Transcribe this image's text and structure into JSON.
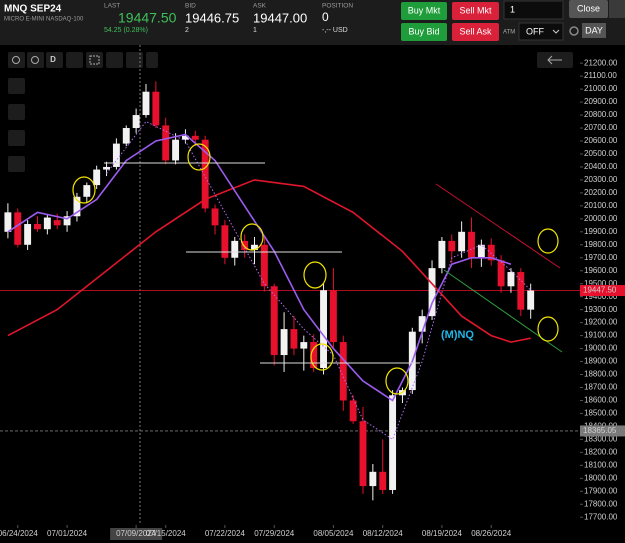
{
  "toolbar": {
    "symbol": "MNQ SEP24",
    "description": "MICRO E-MINI NASDAQ-100",
    "last_label": "LAST",
    "last": "19447.50",
    "change": "54.25 (0.28%)",
    "bid_label": "BID",
    "bid": "19446.75",
    "bid_size": "2",
    "ask_label": "ASK",
    "ask": "19447.00",
    "ask_size": "1",
    "position_label": "POSITION",
    "position": "0",
    "position_value": "-,-- USD",
    "buttons": [
      "Buy Mkt",
      "Sell Mkt",
      "Buy Bid",
      "Sell Ask"
    ],
    "quantity": "1",
    "atm_label": "ATM",
    "atm_value": "OFF",
    "close": "Close",
    "tif": "DAY"
  },
  "chart_data": {
    "type": "candlestick",
    "annotation": "(M)NQ",
    "open": [
      19900,
      20050,
      19800,
      19960,
      19920,
      19990,
      19950,
      20020,
      20170,
      20260,
      20380,
      20400,
      20580,
      20700,
      20800,
      20980,
      20720,
      20450,
      20610,
      20640,
      20610,
      20080,
      19950,
      19700,
      19830,
      19760,
      19800,
      19480,
      18950,
      19150,
      19000,
      19050,
      18850,
      19450,
      19050,
      18600,
      18440,
      17940,
      18050,
      17910,
      18640,
      18680,
      19130,
      19250,
      19620,
      19830,
      19750,
      19900,
      19700,
      19800,
      19680,
      19480,
      19590,
      19300
    ],
    "high": [
      20120,
      20080,
      19990,
      20020,
      20030,
      20040,
      20060,
      20200,
      20280,
      20410,
      20440,
      20620,
      20720,
      20850,
      21040,
      21060,
      20780,
      20660,
      20690,
      20680,
      20640,
      20110,
      19990,
      19860,
      19880,
      19860,
      19860,
      19500,
      19280,
      19250,
      19100,
      19110,
      19500,
      19620,
      19100,
      18640,
      18550,
      18110,
      18300,
      18680,
      18700,
      19160,
      19300,
      19680,
      19860,
      19880,
      19980,
      20010,
      19840,
      19850,
      19720,
      19620,
      19620,
      19500
    ],
    "low": [
      19850,
      19780,
      19760,
      19900,
      19880,
      19920,
      19900,
      19980,
      20120,
      20230,
      20330,
      20380,
      20560,
      20660,
      20780,
      20700,
      20420,
      20420,
      20580,
      20560,
      20050,
      19880,
      19650,
      19640,
      19700,
      19650,
      19440,
      18870,
      18820,
      18950,
      18830,
      18820,
      18800,
      19000,
      18520,
      18420,
      17880,
      17830,
      17880,
      17880,
      18580,
      18650,
      19040,
      19220,
      19580,
      19660,
      19700,
      19620,
      19630,
      19640,
      19430,
      19430,
      19250,
      19230
    ],
    "close": [
      20050,
      19800,
      19960,
      19920,
      20010,
      19950,
      20020,
      20170,
      20260,
      20380,
      20400,
      20580,
      20700,
      20800,
      20980,
      20720,
      20450,
      20610,
      20640,
      20610,
      20080,
      19950,
      19700,
      19830,
      19760,
      19800,
      19480,
      18950,
      19150,
      19000,
      19050,
      18850,
      19450,
      19050,
      18600,
      18440,
      17940,
      18050,
      17910,
      18640,
      18680,
      19130,
      19250,
      19620,
      19830,
      19750,
      19900,
      19700,
      19800,
      19680,
      19480,
      19590,
      19300,
      19447.5
    ],
    "up_color": "#f2f2f2",
    "down_color": "#e8112d",
    "series": [
      {
        "color": "#e0162b",
        "x": [
          0,
          5,
          10,
          15,
          20,
          25,
          30,
          35,
          40,
          43,
          46,
          49,
          51,
          53
        ],
        "values": [
          19100,
          19300,
          19600,
          19900,
          20150,
          20300,
          20250,
          20050,
          19750,
          19500,
          19250,
          19100,
          19050,
          19080
        ]
      },
      {
        "color": "#9d5cf0",
        "x": [
          0,
          3,
          6,
          9,
          12,
          15,
          18,
          21,
          24,
          27,
          30,
          33,
          36,
          39,
          41,
          43,
          45,
          47,
          49,
          51
        ],
        "values": [
          19900,
          20050,
          20000,
          20150,
          20450,
          20600,
          20650,
          20450,
          20100,
          19750,
          19300,
          19000,
          18750,
          18600,
          18900,
          19350,
          19650,
          19700,
          19700,
          19650
        ]
      },
      {
        "color": "#b06cf5",
        "x": [
          10,
          14,
          18,
          22,
          26,
          30,
          33,
          36,
          39,
          42,
          45,
          48,
          51,
          53
        ],
        "values": [
          20350,
          20750,
          20600,
          20050,
          19500,
          19150,
          18950,
          18450,
          18300,
          18900,
          19700,
          19800,
          19600,
          19450
        ],
        "dashed": true
      }
    ],
    "price_lines": [
      {
        "value": 19447.5,
        "label": "19447.50",
        "color": "#e8112d"
      },
      {
        "value": 18365.05,
        "label": "18365.05",
        "color": "#7a7a7a"
      }
    ],
    "xlim": [
      -0.8,
      58
    ],
    "ylim": [
      17640,
      21340
    ],
    "xticks": [
      {
        "value": 1,
        "label": "06/24/2024"
      },
      {
        "value": 6,
        "label": "07/01/2024"
      },
      {
        "value": 13,
        "label": "07/09/2024"
      },
      {
        "value": 16,
        "label": "07/15/2024"
      },
      {
        "value": 22,
        "label": "07/22/2024"
      },
      {
        "value": 27,
        "label": "07/29/2024"
      },
      {
        "value": 33,
        "label": "08/05/2024"
      },
      {
        "value": 38,
        "label": "08/12/2024"
      },
      {
        "value": 44,
        "label": "08/19/2024"
      },
      {
        "value": 49,
        "label": "08/26/2024"
      }
    ],
    "yticks": [
      {
        "value": 17700,
        "label": "17700.00"
      },
      {
        "value": 17800,
        "label": "17800.00"
      },
      {
        "value": 17900,
        "label": "17900.00"
      },
      {
        "value": 18000,
        "label": "18000.00"
      },
      {
        "value": 18100,
        "label": "18100.00"
      },
      {
        "value": 18200,
        "label": "18200.00"
      },
      {
        "value": 18300,
        "label": "18300.00"
      },
      {
        "value": 18400,
        "label": "18400.00"
      },
      {
        "value": 18500,
        "label": "18500.00"
      },
      {
        "value": 18600,
        "label": "18600.00"
      },
      {
        "value": 18700,
        "label": "18700.00"
      },
      {
        "value": 18800,
        "label": "18800.00"
      },
      {
        "value": 18900,
        "label": "18900.00"
      },
      {
        "value": 19000,
        "label": "19000.00"
      },
      {
        "value": 19100,
        "label": "19100.00"
      },
      {
        "value": 19200,
        "label": "19200.00"
      },
      {
        "value": 19300,
        "label": "19300.00"
      },
      {
        "value": 19400,
        "label": "19400.00"
      },
      {
        "value": 19500,
        "label": "19500.00"
      },
      {
        "value": 19600,
        "label": "19600.00"
      },
      {
        "value": 19700,
        "label": "19700.00"
      },
      {
        "value": 19800,
        "label": "19800.00"
      },
      {
        "value": 19900,
        "label": "19900.00"
      },
      {
        "value": 20000,
        "label": "20000.00"
      },
      {
        "value": 20100,
        "label": "20100.00"
      },
      {
        "value": 20200,
        "label": "20200.00"
      },
      {
        "value": 20300,
        "label": "20300.00"
      },
      {
        "value": 20400,
        "label": "20400.00"
      },
      {
        "value": 20500,
        "label": "20500.00"
      },
      {
        "value": 20600,
        "label": "20600.00"
      },
      {
        "value": 20700,
        "label": "20700.00"
      },
      {
        "value": 20800,
        "label": "20800.00"
      },
      {
        "value": 20900,
        "label": "20900.00"
      },
      {
        "value": 21000,
        "label": "21000.00"
      },
      {
        "value": 21100,
        "label": "21100.00"
      },
      {
        "value": 21200,
        "label": "21200.00"
      }
    ]
  }
}
